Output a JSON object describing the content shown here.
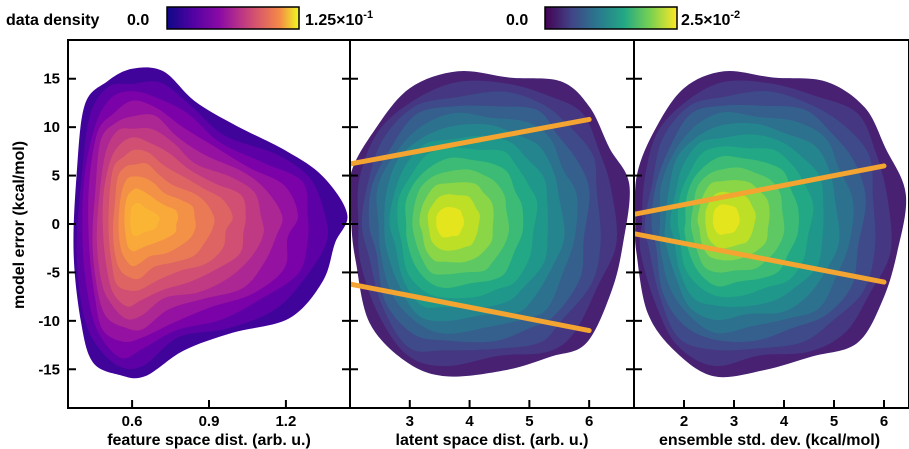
{
  "colorbars": {
    "label": "data density",
    "left": {
      "min_label": "0.0",
      "max_label_mantissa": "1.25×10",
      "max_label_exp": "-1",
      "colormap": "plasma"
    },
    "right": {
      "min_label": "0.0",
      "max_label_mantissa": "2.5×10",
      "max_label_exp": "-2",
      "colormap": "viridis"
    }
  },
  "y_axis": {
    "label": "model error (kcal/mol)",
    "ticks": [
      "15",
      "10",
      "5",
      "0",
      "-5",
      "-10",
      "-15"
    ],
    "tick_values": [
      15,
      10,
      5,
      0,
      -5,
      -10,
      -15
    ],
    "ylim": [
      -19,
      19
    ]
  },
  "accent_line_color": "#f4a430",
  "chart_data": [
    {
      "type": "heatmap",
      "xlabel": "feature space dist. (arb. u.)",
      "ylabel": "model error (kcal/mol)",
      "xlim": [
        0.35,
        1.45
      ],
      "ylim": [
        -19,
        19
      ],
      "x_ticks": [
        "0.6",
        "0.9",
        "1.2"
      ],
      "x_tick_values": [
        0.6,
        0.9,
        1.2
      ],
      "colormap": "plasma",
      "density_peak": {
        "x": 0.62,
        "y": 0.5
      },
      "envelope_points": [
        [
          0.4,
          -10
        ],
        [
          0.45,
          -14
        ],
        [
          0.55,
          -16
        ],
        [
          0.65,
          -15.5
        ],
        [
          0.8,
          -13
        ],
        [
          1.0,
          -11.5
        ],
        [
          1.2,
          -9.5
        ],
        [
          1.35,
          -6
        ],
        [
          1.4,
          -2
        ],
        [
          1.42,
          1
        ],
        [
          1.36,
          5
        ],
        [
          1.2,
          7.5
        ],
        [
          1.0,
          10
        ],
        [
          0.85,
          13
        ],
        [
          0.72,
          15.5
        ],
        [
          0.6,
          16
        ],
        [
          0.5,
          15
        ],
        [
          0.42,
          12
        ],
        [
          0.38,
          5
        ],
        [
          0.37,
          -3
        ]
      ],
      "trend_lines": []
    },
    {
      "type": "heatmap",
      "xlabel": "latent space dist. (arb. u.)",
      "ylabel": "",
      "xlim": [
        2.0,
        6.75
      ],
      "ylim": [
        -19,
        19
      ],
      "x_ticks": [
        "3",
        "4",
        "5",
        "6"
      ],
      "x_tick_values": [
        3,
        4,
        5,
        6
      ],
      "colormap": "viridis",
      "density_peak": {
        "x": 3.6,
        "y": 0.2
      },
      "envelope_points": [
        [
          2.1,
          -4
        ],
        [
          2.35,
          -10
        ],
        [
          2.9,
          -14.5
        ],
        [
          3.6,
          -15.5
        ],
        [
          4.6,
          -15
        ],
        [
          5.4,
          -14
        ],
        [
          5.9,
          -12
        ],
        [
          6.4,
          -7
        ],
        [
          6.6,
          -2
        ],
        [
          6.6,
          4
        ],
        [
          6.4,
          8
        ],
        [
          6.0,
          12
        ],
        [
          5.5,
          14.5
        ],
        [
          4.7,
          15.5
        ],
        [
          3.8,
          15.5
        ],
        [
          3.0,
          14
        ],
        [
          2.4,
          10
        ],
        [
          2.05,
          5
        ],
        [
          2.0,
          0
        ]
      ],
      "trend_lines": [
        {
          "x": [
            2.0,
            6.0
          ],
          "y": [
            6.2,
            10.8
          ]
        },
        {
          "x": [
            2.0,
            6.0
          ],
          "y": [
            -6.2,
            -11.0
          ]
        }
      ]
    },
    {
      "type": "heatmap",
      "xlabel": "ensemble std. dev. (kcal/mol)",
      "ylabel": "",
      "xlim": [
        1.0,
        6.5
      ],
      "ylim": [
        -19,
        19
      ],
      "x_ticks": [
        "2",
        "3",
        "4",
        "5",
        "6"
      ],
      "x_tick_values": [
        2,
        3,
        4,
        5,
        6
      ],
      "colormap": "viridis",
      "density_peak": {
        "x": 2.75,
        "y": 0.5
      },
      "envelope_points": [
        [
          1.05,
          -3
        ],
        [
          1.3,
          -9
        ],
        [
          1.8,
          -13.5
        ],
        [
          2.6,
          -15.5
        ],
        [
          3.6,
          -15
        ],
        [
          4.6,
          -14
        ],
        [
          5.4,
          -12
        ],
        [
          6.0,
          -8
        ],
        [
          6.3,
          -3
        ],
        [
          6.35,
          3
        ],
        [
          6.1,
          8
        ],
        [
          5.6,
          12
        ],
        [
          4.8,
          14.5
        ],
        [
          3.8,
          15.5
        ],
        [
          2.8,
          15.5
        ],
        [
          2.0,
          14
        ],
        [
          1.4,
          10
        ],
        [
          1.1,
          5
        ],
        [
          1.0,
          0
        ]
      ],
      "trend_lines": [
        {
          "x": [
            1.0,
            6.0
          ],
          "y": [
            1.0,
            6.0
          ]
        },
        {
          "x": [
            1.0,
            6.0
          ],
          "y": [
            -1.0,
            -6.0
          ]
        }
      ]
    }
  ]
}
